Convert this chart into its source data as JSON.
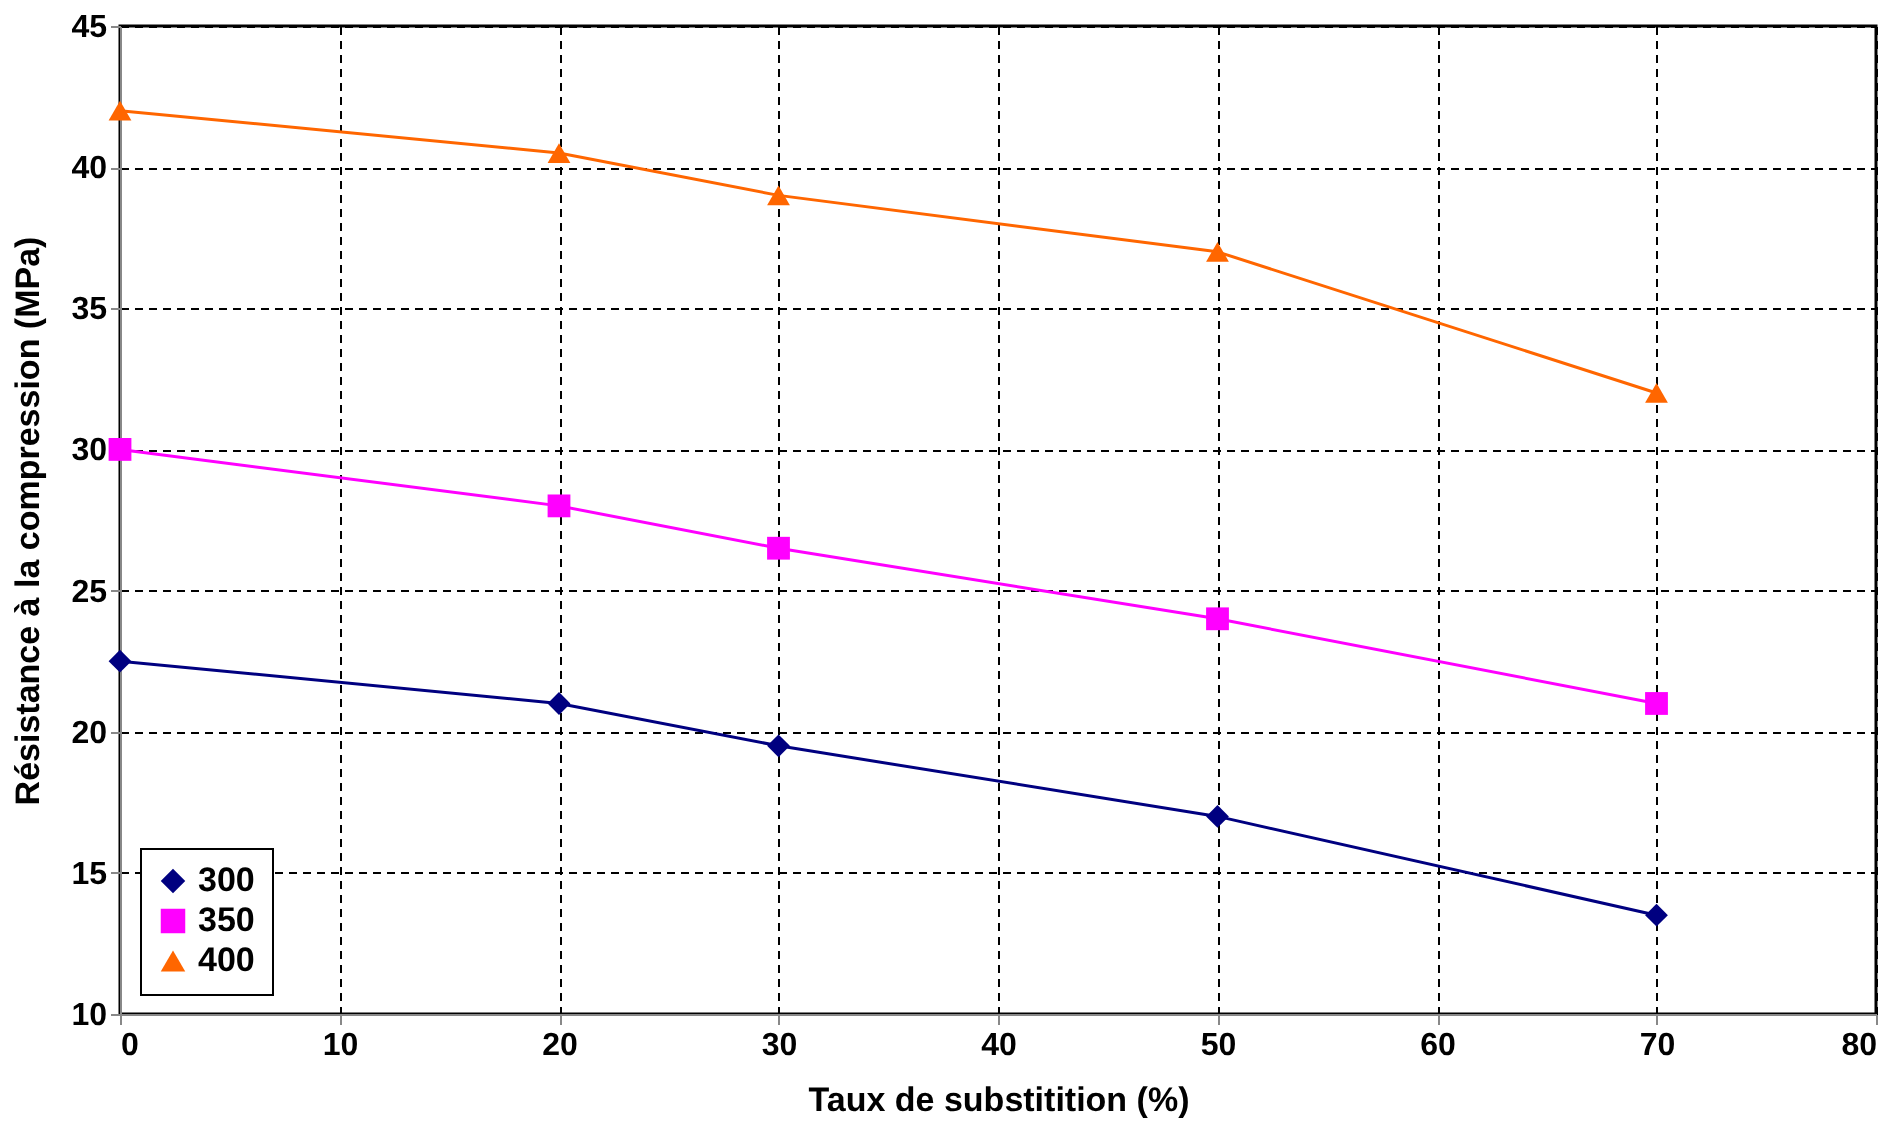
{
  "chart_data": {
    "type": "line",
    "xlabel": "Taux de substitition (%)",
    "ylabel": "Résistance à la compression (MPa)",
    "x": [
      0,
      20,
      30,
      50,
      70
    ],
    "series": [
      {
        "name": "300",
        "color": "#000080",
        "marker": "diamond",
        "values": [
          22.5,
          21,
          19.5,
          17,
          13.5
        ]
      },
      {
        "name": "350",
        "color": "#ff00ff",
        "marker": "square",
        "values": [
          30,
          28,
          26.5,
          24,
          21
        ]
      },
      {
        "name": "400",
        "color": "#ff6600",
        "marker": "triangle",
        "values": [
          42,
          40.5,
          39,
          37,
          32
        ]
      }
    ],
    "xlim": [
      0,
      80
    ],
    "xticks": [
      0,
      10,
      20,
      30,
      40,
      50,
      60,
      70,
      80
    ],
    "ylim": [
      10,
      45
    ],
    "yticks": [
      10,
      15,
      20,
      25,
      30,
      35,
      40,
      45
    ],
    "grid": true,
    "legend": "bottom left",
    "line_style": "solid"
  }
}
